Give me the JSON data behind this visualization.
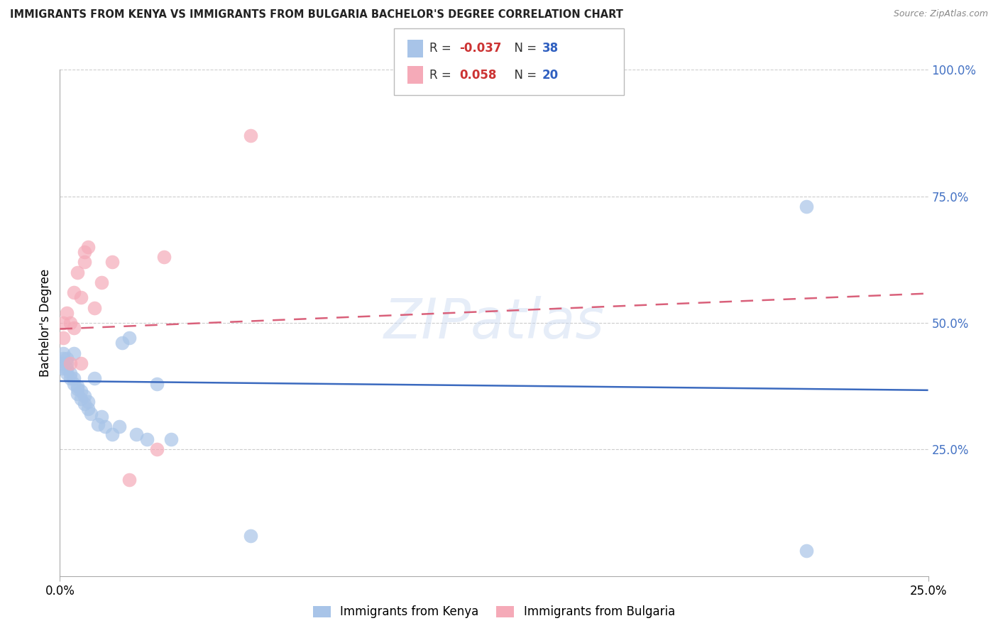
{
  "title": "IMMIGRANTS FROM KENYA VS IMMIGRANTS FROM BULGARIA BACHELOR'S DEGREE CORRELATION CHART",
  "source": "Source: ZipAtlas.com",
  "ylabel": "Bachelor's Degree",
  "xlim": [
    0.0,
    0.25
  ],
  "ylim": [
    0.0,
    1.0
  ],
  "kenya_color": "#a8c4e8",
  "bulgaria_color": "#f5aab8",
  "kenya_line_color": "#3b6abf",
  "bulgaria_line_color": "#d9607a",
  "kenya_points_x": [
    0.001,
    0.001,
    0.001,
    0.001,
    0.002,
    0.002,
    0.002,
    0.002,
    0.003,
    0.003,
    0.004,
    0.004,
    0.004,
    0.005,
    0.005,
    0.005,
    0.006,
    0.006,
    0.007,
    0.007,
    0.008,
    0.008,
    0.009,
    0.01,
    0.011,
    0.012,
    0.013,
    0.015,
    0.017,
    0.018,
    0.02,
    0.022,
    0.025,
    0.028,
    0.032,
    0.055,
    0.215,
    0.215
  ],
  "kenya_points_y": [
    0.44,
    0.43,
    0.42,
    0.41,
    0.43,
    0.42,
    0.41,
    0.4,
    0.4,
    0.39,
    0.44,
    0.39,
    0.38,
    0.37,
    0.36,
    0.375,
    0.365,
    0.35,
    0.355,
    0.34,
    0.33,
    0.345,
    0.32,
    0.39,
    0.3,
    0.315,
    0.295,
    0.28,
    0.295,
    0.46,
    0.47,
    0.28,
    0.27,
    0.38,
    0.27,
    0.08,
    0.73,
    0.05
  ],
  "bulgaria_points_x": [
    0.001,
    0.001,
    0.002,
    0.003,
    0.003,
    0.004,
    0.004,
    0.005,
    0.006,
    0.006,
    0.007,
    0.007,
    0.008,
    0.01,
    0.012,
    0.015,
    0.02,
    0.028,
    0.03,
    0.055
  ],
  "bulgaria_points_y": [
    0.5,
    0.47,
    0.52,
    0.5,
    0.42,
    0.56,
    0.49,
    0.6,
    0.55,
    0.42,
    0.64,
    0.62,
    0.65,
    0.53,
    0.58,
    0.62,
    0.19,
    0.25,
    0.63,
    0.87
  ],
  "kenya_trend": [
    0.0,
    0.25,
    0.385,
    0.367
  ],
  "bulgaria_trend": [
    0.0,
    0.25,
    0.488,
    0.558
  ],
  "legend_r1": "-0.037",
  "legend_n1": "38",
  "legend_r2": "0.058",
  "legend_n2": "20"
}
